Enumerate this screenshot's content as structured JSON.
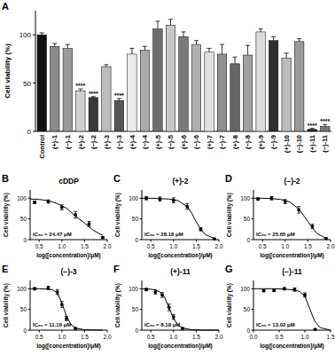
{
  "chart_data": [
    {
      "type": "bar",
      "panel_label": "A",
      "y_label": "Cell viability (%)",
      "categories": [
        "Control",
        "(+)-1",
        "(−)-1",
        "(+)-2",
        "(−)-2",
        "(+)-3",
        "(−)-3",
        "(+)-4",
        "(−)-4",
        "(+)-5",
        "(−)-5",
        "(+)-6",
        "(−)-6",
        "(+)-7",
        "(−)-7",
        "(+)-8",
        "(−)-8",
        "(+)-9",
        "(−)-9",
        "(+)-10",
        "(−)-10",
        "(+)-11",
        "(−)-11"
      ],
      "values": [
        100,
        88,
        86,
        42,
        35,
        67,
        32,
        80,
        84,
        106,
        110,
        98,
        90,
        82,
        80,
        70,
        79,
        103,
        94,
        76,
        93,
        2,
        5
      ],
      "errors": [
        2,
        3,
        4,
        2,
        1,
        2,
        2,
        6,
        4,
        8,
        6,
        5,
        4,
        4,
        10,
        7,
        10,
        3,
        4,
        5,
        3,
        1,
        2
      ],
      "significance": [
        null,
        null,
        null,
        "****",
        "****",
        null,
        "****",
        null,
        null,
        null,
        null,
        null,
        null,
        null,
        null,
        null,
        null,
        null,
        null,
        null,
        null,
        "****",
        "****"
      ],
      "colors": [
        "#111111",
        "#8a8a8a",
        "#9a9a9a",
        "#d0d0d0",
        "#3a3a3a",
        "#bdbdbd",
        "#555555",
        "#ececec",
        "#aaaaaa",
        "#6e6e6e",
        "#c8c8c8",
        "#7a7a7a",
        "#b0b0b0",
        "#e0e0e0",
        "#909090",
        "#666666",
        "#a0a0a0",
        "#dcdcdc",
        "#2e2e2e",
        "#bbbbbb",
        "#999999",
        "#222222",
        "#777777"
      ],
      "ylim": [
        0,
        125
      ],
      "yticks": [
        0,
        50,
        100
      ]
    },
    {
      "type": "scatter",
      "panel_label": "B",
      "title": "cDDP",
      "annotation": "IC₅₀ = 24.47 μM",
      "x_label": "log([concentration]/μM)",
      "y_label": "Cell viability (%)",
      "xlim": [
        0.3,
        2.0
      ],
      "ylim": [
        0,
        120
      ],
      "xticks": [
        0.5,
        {
          "value": 1,
          "label": "1.0"
        },
        1.5,
        {
          "value": 2,
          "label": "2.0"
        }
      ],
      "yticks": [
        0,
        50,
        100
      ],
      "series": [
        {
          "type": "scatter",
          "marker": "circle",
          "color": "#000000",
          "x": [
            0.4,
            0.7,
            1.0,
            1.3,
            1.6,
            1.9
          ],
          "values": [
            90,
            92,
            78,
            60,
            38,
            5
          ],
          "errors": [
            3,
            4,
            6,
            8,
            6,
            2
          ]
        },
        {
          "type": "line",
          "line_style": "solid",
          "color": "#000000",
          "x": [
            0.3,
            0.5,
            0.7,
            0.9,
            1.1,
            1.3,
            1.5,
            1.7,
            1.9
          ],
          "values": [
            98,
            97,
            94,
            87,
            76,
            57,
            40,
            22,
            10
          ]
        }
      ]
    },
    {
      "type": "scatter",
      "panel_label": "C",
      "title": "(+)-2",
      "annotation": "IC₅₀ = 28.18 μM",
      "x_label": "log([concentration]/μM)",
      "y_label": "Cell viability (%)",
      "xlim": [
        0.3,
        2.0
      ],
      "ylim": [
        0,
        120
      ],
      "xticks": [
        0.5,
        {
          "value": 1,
          "label": "1.0"
        },
        1.5,
        {
          "value": 2,
          "label": "2.0"
        }
      ],
      "yticks": [
        0,
        50,
        100
      ],
      "series": [
        {
          "type": "scatter",
          "marker": "circle",
          "color": "#000000",
          "x": [
            0.4,
            0.7,
            1.0,
            1.3,
            1.6,
            1.9
          ],
          "values": [
            100,
            98,
            95,
            80,
            25,
            2
          ],
          "errors": [
            4,
            5,
            6,
            7,
            4,
            1
          ]
        },
        {
          "type": "line",
          "line_style": "solid",
          "color": "#000000",
          "x": [
            0.3,
            0.5,
            0.7,
            0.9,
            1.1,
            1.3,
            1.4,
            1.5,
            1.6,
            1.7,
            1.9
          ],
          "values": [
            100,
            100,
            99,
            98,
            94,
            80,
            64,
            43,
            25,
            12,
            3
          ]
        }
      ]
    },
    {
      "type": "scatter",
      "panel_label": "D",
      "title": "(−)-2",
      "annotation": "IC₅₀ = 25.65 μM",
      "x_label": "log([concentration]/μM)",
      "y_label": "Cell viability (%)",
      "xlim": [
        0.3,
        2.0
      ],
      "ylim": [
        0,
        120
      ],
      "xticks": [
        0.5,
        {
          "value": 1,
          "label": "1.0"
        },
        1.5,
        {
          "value": 2,
          "label": "2.0"
        }
      ],
      "yticks": [
        0,
        50,
        100
      ],
      "series": [
        {
          "type": "scatter",
          "marker": "circle",
          "color": "#000000",
          "x": [
            0.4,
            0.7,
            1.0,
            1.3,
            1.6,
            1.9
          ],
          "values": [
            98,
            100,
            92,
            72,
            32,
            3
          ],
          "errors": [
            3,
            4,
            5,
            8,
            5,
            1
          ]
        },
        {
          "type": "line",
          "line_style": "solid",
          "color": "#000000",
          "x": [
            0.3,
            0.5,
            0.7,
            0.9,
            1.1,
            1.3,
            1.4,
            1.5,
            1.6,
            1.7,
            1.9
          ],
          "values": [
            100,
            100,
            99,
            97,
            91,
            74,
            59,
            44,
            28,
            15,
            3
          ]
        }
      ]
    },
    {
      "type": "scatter",
      "panel_label": "E",
      "title": "(−)-3",
      "annotation": "IC₅₀ = 11.16 μM",
      "x_label": "log([concentration]/μM)",
      "y_label": "Cell viability (%)",
      "xlim": [
        0.3,
        2.0
      ],
      "ylim": [
        0,
        120
      ],
      "xticks": [
        0.5,
        {
          "value": 1,
          "label": "1.0"
        },
        1.5,
        {
          "value": 2,
          "label": "2.0"
        }
      ],
      "yticks": [
        0,
        50,
        100
      ],
      "series": [
        {
          "type": "scatter",
          "marker": "circle",
          "color": "#000000",
          "x": [
            0.4,
            0.7,
            0.9,
            1.0,
            1.1,
            1.3
          ],
          "values": [
            100,
            102,
            92,
            62,
            28,
            4
          ],
          "errors": [
            3,
            4,
            6,
            7,
            5,
            2
          ]
        },
        {
          "type": "line",
          "line_style": "solid",
          "color": "#000000",
          "x": [
            0.3,
            0.5,
            0.7,
            0.8,
            0.9,
            1.0,
            1.05,
            1.1,
            1.2,
            1.3,
            1.5,
            1.9
          ],
          "values": [
            100,
            100,
            99,
            97,
            90,
            66,
            50,
            34,
            14,
            5,
            1,
            0
          ]
        }
      ]
    },
    {
      "type": "scatter",
      "panel_label": "F",
      "title": "(+)-11",
      "annotation": "IC₅₀ = 8.18 μM",
      "x_label": "log([concentration]/μM)",
      "y_label": "Cell viability (%)",
      "xlim": [
        0.3,
        2.0
      ],
      "ylim": [
        0,
        120
      ],
      "xticks": [
        0.5,
        {
          "value": 1,
          "label": "1.0"
        },
        1.5,
        {
          "value": 2,
          "label": "2.0"
        }
      ],
      "yticks": [
        0,
        50,
        100
      ],
      "series": [
        {
          "type": "scatter",
          "marker": "circle",
          "color": "#000000",
          "x": [
            0.4,
            0.6,
            0.75,
            0.9,
            1.0,
            1.2
          ],
          "values": [
            98,
            92,
            85,
            55,
            32,
            4
          ],
          "errors": [
            3,
            5,
            6,
            8,
            6,
            2
          ]
        },
        {
          "type": "line",
          "line_style": "solid",
          "color": "#000000",
          "x": [
            0.3,
            0.5,
            0.6,
            0.7,
            0.8,
            0.9,
            1.0,
            1.1,
            1.2,
            1.4,
            1.7,
            2.0
          ],
          "values": [
            100,
            99,
            97,
            92,
            80,
            54,
            28,
            12,
            5,
            1,
            0,
            0
          ]
        }
      ]
    },
    {
      "type": "scatter",
      "panel_label": "G",
      "title": "(−)-11",
      "annotation": "IC₅₀ = 13.02 μM",
      "x_label": "log([concentration]/μM)",
      "y_label": "Cell viability (%)",
      "xlim": [
        0,
        1.5
      ],
      "ylim": [
        0,
        120
      ],
      "xticks": [
        {
          "value": 0,
          "label": "0.0"
        },
        0.5,
        {
          "value": 1,
          "label": "1.0"
        },
        1.5
      ],
      "yticks": [
        0,
        50,
        100
      ],
      "series": [
        {
          "type": "scatter",
          "marker": "circle",
          "color": "#000000",
          "x": [
            0.2,
            0.4,
            0.6,
            0.8,
            1.0,
            1.2
          ],
          "values": [
            95,
            96,
            100,
            98,
            85,
            2
          ],
          "errors": [
            2,
            3,
            3,
            4,
            5,
            1
          ]
        },
        {
          "type": "line",
          "line_style": "solid",
          "color": "#000000",
          "x": [
            0,
            0.2,
            0.4,
            0.6,
            0.8,
            0.9,
            1.0,
            1.05,
            1.1,
            1.15,
            1.2,
            1.3,
            1.5
          ],
          "values": [
            100,
            100,
            100,
            99,
            97,
            93,
            82,
            66,
            50,
            34,
            20,
            6,
            0
          ]
        }
      ]
    }
  ]
}
